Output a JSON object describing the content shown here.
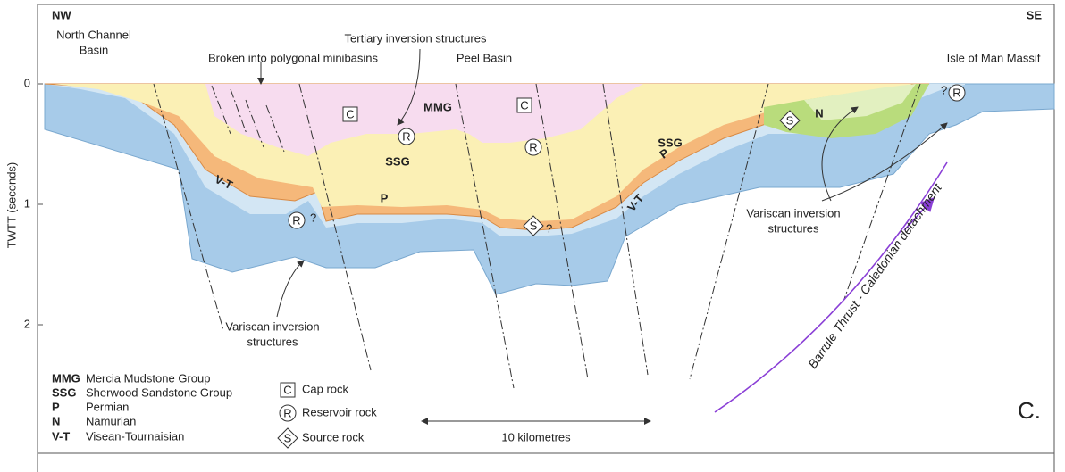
{
  "header": {
    "left": "NW",
    "right": "SE"
  },
  "axis": {
    "label": "TWTT (seconds)",
    "ticks": [
      "0",
      "1",
      "2"
    ]
  },
  "places": [
    "North Channel",
    "Basin",
    "Tertiary inversion structures",
    "Broken into polygonal minibasins",
    "Peel Basin",
    "Isle of Man Massif"
  ],
  "section_labels": [
    "MMG",
    "SSG",
    "SSG",
    "P",
    "P",
    "V-T",
    "V-T",
    "N"
  ],
  "section_symbols": [
    "C",
    "C",
    "R",
    "R",
    "R",
    "R",
    "S",
    "S"
  ],
  "question_marks": [
    "?",
    "?",
    "?"
  ],
  "annotations": [
    "Variscan inversion",
    "structures",
    "Variscan inversion",
    "structures"
  ],
  "legend": {
    "units": [
      {
        "abbr": "MMG",
        "name": "Mercia Mudstone Group"
      },
      {
        "abbr": "SSG",
        "name": "Sherwood Sandstone Group"
      },
      {
        "abbr": "P",
        "name": "Permian"
      },
      {
        "abbr": "N",
        "name": "Namurian"
      },
      {
        "abbr": "V-T",
        "name": "Visean-Tournaisian"
      }
    ],
    "symbols": [
      {
        "symbol": "C",
        "name": "Cap rock"
      },
      {
        "symbol": "R",
        "name": "Reservoir rock"
      },
      {
        "symbol": "S",
        "name": "Source rock"
      }
    ]
  },
  "scale": "10 kilometres",
  "thrust": "Barrule Thrust - Caledonian detachment",
  "panel": "C."
}
